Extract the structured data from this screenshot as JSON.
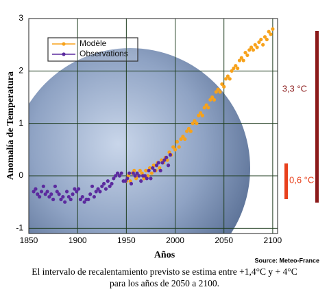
{
  "chart_data": {
    "type": "scatter",
    "xlabel": "Años",
    "ylabel": "Anomalía de Temperatura",
    "xlim": [
      1850,
      2105
    ],
    "ylim": [
      -1.1,
      3
    ],
    "xticks": [
      1850,
      1900,
      1950,
      2000,
      2050,
      2100
    ],
    "yticks": [
      -1,
      0,
      1,
      2,
      3
    ],
    "grid": true,
    "legend": "upper left",
    "series": [
      {
        "name": "Modèle",
        "color": "#f7a21b",
        "x": [
          1950,
          1952,
          1954,
          1956,
          1958,
          1960,
          1962,
          1964,
          1966,
          1968,
          1970,
          1972,
          1974,
          1976,
          1978,
          1980,
          1982,
          1984,
          1986,
          1988,
          1990,
          1992,
          1994,
          1996,
          1998,
          2000,
          2002,
          2004,
          2006,
          2008,
          2010,
          2012,
          2014,
          2016,
          2018,
          2020,
          2022,
          2024,
          2026,
          2028,
          2030,
          2032,
          2034,
          2036,
          2038,
          2040,
          2042,
          2044,
          2046,
          2048,
          2050,
          2052,
          2054,
          2056,
          2058,
          2060,
          2062,
          2064,
          2066,
          2068,
          2070,
          2072,
          2074,
          2076,
          2078,
          2080,
          2082,
          2084,
          2086,
          2088,
          2090,
          2092,
          2094,
          2096,
          2098,
          2100
        ],
        "values": [
          -0.1,
          0,
          -0.1,
          0.05,
          0.1,
          -0.05,
          0,
          0.1,
          0.05,
          -0.05,
          0.1,
          0,
          0.15,
          0.05,
          0.2,
          0.1,
          0.25,
          0.15,
          0.3,
          0.25,
          0.35,
          0.3,
          0.45,
          0.4,
          0.55,
          0.5,
          0.65,
          0.55,
          0.7,
          0.75,
          0.7,
          0.85,
          0.9,
          0.85,
          1.0,
          1.05,
          1.0,
          1.15,
          1.2,
          1.15,
          1.3,
          1.35,
          1.3,
          1.45,
          1.5,
          1.45,
          1.6,
          1.65,
          1.6,
          1.75,
          1.7,
          1.85,
          1.9,
          1.85,
          2.0,
          2.05,
          2.1,
          2.05,
          2.2,
          2.25,
          2.2,
          2.35,
          2.3,
          2.4,
          2.45,
          2.4,
          2.5,
          2.45,
          2.55,
          2.6,
          2.5,
          2.65,
          2.6,
          2.75,
          2.7,
          2.8
        ]
      },
      {
        "name": "Observations",
        "color": "#5b2a9e",
        "x": [
          1855,
          1857,
          1859,
          1861,
          1863,
          1865,
          1867,
          1869,
          1871,
          1873,
          1875,
          1877,
          1879,
          1881,
          1883,
          1885,
          1887,
          1889,
          1891,
          1893,
          1895,
          1897,
          1899,
          1901,
          1903,
          1905,
          1907,
          1909,
          1911,
          1913,
          1915,
          1917,
          1919,
          1921,
          1923,
          1925,
          1927,
          1929,
          1931,
          1933,
          1935,
          1937,
          1939,
          1941,
          1943,
          1945,
          1947,
          1949,
          1951,
          1953,
          1955,
          1957,
          1959,
          1961,
          1963,
          1965,
          1967,
          1969,
          1971,
          1973,
          1975,
          1977,
          1979,
          1981,
          1983,
          1985,
          1987,
          1989,
          1991,
          1993,
          1995
        ],
        "values": [
          -0.3,
          -0.25,
          -0.35,
          -0.4,
          -0.3,
          -0.2,
          -0.35,
          -0.3,
          -0.4,
          -0.35,
          -0.45,
          -0.2,
          -0.3,
          -0.35,
          -0.45,
          -0.4,
          -0.5,
          -0.3,
          -0.4,
          -0.45,
          -0.35,
          -0.25,
          -0.3,
          -0.25,
          -0.45,
          -0.4,
          -0.5,
          -0.45,
          -0.45,
          -0.35,
          -0.2,
          -0.4,
          -0.3,
          -0.25,
          -0.3,
          -0.2,
          -0.15,
          -0.25,
          -0.1,
          -0.2,
          -0.15,
          -0.05,
          0,
          0.05,
          0,
          0.05,
          -0.1,
          -0.1,
          -0.05,
          0.05,
          -0.15,
          0.05,
          0,
          0.05,
          0,
          -0.1,
          0,
          0,
          -0.05,
          0.1,
          -0.05,
          0.15,
          0.1,
          0.2,
          0.25,
          0.1,
          0.25,
          0.3,
          0.35,
          0.2,
          0.4
        ]
      }
    ],
    "annotations": [
      "3,3 °C",
      "0,6 °C",
      "Source: Meteo-France"
    ],
    "caption": [
      "El intervalo de recalentamiento previsto se estima entre +1,4°C y + 4°C",
      "para los años de 2050 a 2100."
    ]
  }
}
